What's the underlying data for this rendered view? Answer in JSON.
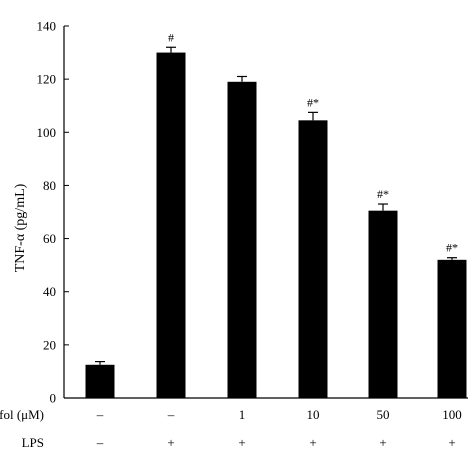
{
  "chart_data": {
    "type": "bar",
    "ylabel": "TNF-α (pg/mL)",
    "ylim": [
      0,
      140
    ],
    "yticks": [
      0,
      20,
      40,
      60,
      80,
      100,
      120,
      140
    ],
    "grid": false,
    "values": [
      12.5,
      130,
      119,
      104.5,
      70.5,
      52
    ],
    "errors": [
      1.2,
      2,
      2,
      3,
      2.5,
      0.8
    ],
    "annotations": [
      "",
      "#",
      "",
      "#*",
      "#*",
      "#*"
    ],
    "bar_color": "#000000",
    "factor_rows": [
      {
        "label": "Propofol (μM)",
        "values": [
          "–",
          "–",
          "1",
          "10",
          "50",
          "100"
        ]
      },
      {
        "label": "LPS",
        "values": [
          "–",
          "+",
          "+",
          "+",
          "+",
          "+"
        ]
      }
    ]
  }
}
